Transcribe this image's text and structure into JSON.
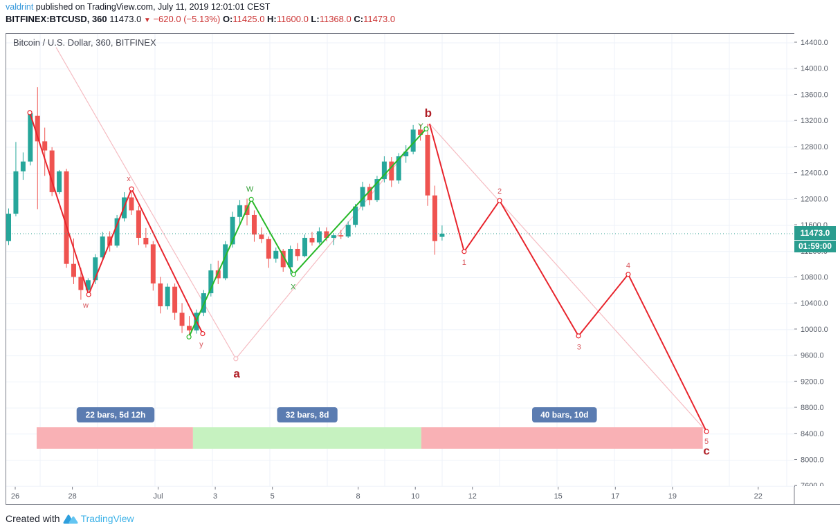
{
  "header": {
    "author": "valdrint",
    "published": " published on TradingView.com, July 11, 2019 12:01:01 CEST",
    "symbol": "BITFINEX:BTCUSD, 360",
    "last": "11473.0",
    "arrow": "▼",
    "change": "−620.0 (−5.13%)",
    "o_label": "O:",
    "o_val": "11425.0",
    "h_label": "H:",
    "h_val": "11600.0",
    "l_label": "L:",
    "l_val": "11368.0",
    "c_label": "C:",
    "c_val": "11473.0"
  },
  "chart": {
    "title": "Bitcoin / U.S. Dollar, 360, BITFINEX",
    "price_label": {
      "price": "11473.0",
      "countdown": "01:59:00"
    }
  },
  "footer": {
    "created_with": "Created with",
    "brand": "TradingView"
  },
  "colors": {
    "up": "#26a69a",
    "down": "#ef5350",
    "grid": "#eef2f9",
    "frame": "#787b86",
    "red_line": "#e8242c",
    "green_line": "#27b827",
    "pink_line": "#f5bcc2",
    "label_red_small": "#d8555b",
    "label_red_bold": "#b01e26",
    "label_green": "#2f9e33",
    "badge_bg": "#5b7cb1",
    "badge_text": "#ffffff",
    "band_pink": "#f9b1b5",
    "band_green": "#c6f2c0",
    "price_line": "#2a9d8f",
    "price_label_bg": "#2a9d8f",
    "axis_text": "#555b66",
    "header_red": "#cc3434",
    "author_blue": "#3598db",
    "brand_blue": "#3fb3e8"
  },
  "chart_data": {
    "type": "candlestick",
    "symbol": "BITFINEX:BTCUSD",
    "interval_minutes": 360,
    "title": "Bitcoin / U.S. Dollar, 360, BITFINEX",
    "current_price": 11473.0,
    "y_axis": {
      "min": 7600,
      "max": 14400,
      "tick_step": 400,
      "ticks": [
        7600,
        8000,
        8400,
        8800,
        9200,
        9600,
        10000,
        10400,
        10800,
        11200,
        11600,
        12000,
        12400,
        12800,
        13200,
        13600,
        14000,
        14400
      ]
    },
    "x_axis": {
      "note": "day offsets measured from June 26",
      "tick_labels": [
        {
          "label": "26",
          "d": 0
        },
        {
          "label": "28",
          "d": 2
        },
        {
          "label": "Jul",
          "d": 5
        },
        {
          "label": "3",
          "d": 7
        },
        {
          "label": "5",
          "d": 9
        },
        {
          "label": "8",
          "d": 12
        },
        {
          "label": "10",
          "d": 14
        },
        {
          "label": "12",
          "d": 16
        },
        {
          "label": "15",
          "d": 19
        },
        {
          "label": "17",
          "d": 21
        },
        {
          "label": "19",
          "d": 23
        },
        {
          "label": "22",
          "d": 26
        }
      ]
    },
    "first_bar_day": -0.25,
    "bar_step_days": 0.25,
    "candles": [
      [
        11360,
        11860,
        11300,
        11780
      ],
      [
        11780,
        12880,
        11740,
        12430
      ],
      [
        12430,
        12720,
        12300,
        12580
      ],
      [
        12580,
        13340,
        12520,
        13320
      ],
      [
        13280,
        13720,
        11850,
        12890
      ],
      [
        12890,
        13100,
        12360,
        12750
      ],
      [
        12750,
        12800,
        12050,
        12110
      ],
      [
        12110,
        12450,
        12080,
        12430
      ],
      [
        12430,
        12470,
        10950,
        11010
      ],
      [
        11010,
        11400,
        10700,
        10810
      ],
      [
        10810,
        10950,
        10460,
        10610
      ],
      [
        10610,
        10790,
        10540,
        10760
      ],
      [
        10760,
        11160,
        10700,
        11110
      ],
      [
        11110,
        11500,
        11060,
        11430
      ],
      [
        11430,
        11510,
        11200,
        11290
      ],
      [
        11290,
        11760,
        11260,
        11710
      ],
      [
        11710,
        12110,
        11660,
        12030
      ],
      [
        12030,
        12160,
        11760,
        11830
      ],
      [
        11830,
        11900,
        11300,
        11410
      ],
      [
        11410,
        11560,
        11260,
        11310
      ],
      [
        11310,
        11360,
        10600,
        10710
      ],
      [
        10710,
        10810,
        10250,
        10360
      ],
      [
        10360,
        10710,
        10310,
        10660
      ],
      [
        10660,
        10710,
        10150,
        10260
      ],
      [
        10260,
        10410,
        9950,
        10060
      ],
      [
        10060,
        10210,
        9880,
        9990
      ],
      [
        9990,
        10310,
        9940,
        10260
      ],
      [
        10260,
        10610,
        10210,
        10560
      ],
      [
        10560,
        11010,
        10510,
        10910
      ],
      [
        10910,
        11060,
        10700,
        10790
      ],
      [
        10790,
        11360,
        10760,
        11310
      ],
      [
        11310,
        11810,
        11260,
        11730
      ],
      [
        11730,
        11990,
        11610,
        11910
      ],
      [
        11910,
        12010,
        11600,
        11760
      ],
      [
        11760,
        11830,
        11350,
        11460
      ],
      [
        11460,
        11570,
        11330,
        11390
      ],
      [
        11390,
        11430,
        10950,
        11090
      ],
      [
        11090,
        11260,
        11030,
        11210
      ],
      [
        11210,
        11240,
        10890,
        10960
      ],
      [
        10960,
        11290,
        10850,
        11240
      ],
      [
        11240,
        11330,
        11060,
        11130
      ],
      [
        11130,
        11460,
        11110,
        11410
      ],
      [
        11410,
        11500,
        11290,
        11340
      ],
      [
        11340,
        11570,
        11310,
        11510
      ],
      [
        11510,
        11570,
        11360,
        11410
      ],
      [
        11410,
        11480,
        11300,
        11450
      ],
      [
        11450,
        11530,
        11390,
        11430
      ],
      [
        11430,
        11660,
        11410,
        11610
      ],
      [
        11610,
        11930,
        11570,
        11890
      ],
      [
        11890,
        12270,
        11830,
        12190
      ],
      [
        12190,
        12240,
        11910,
        11990
      ],
      [
        11990,
        12360,
        11960,
        12310
      ],
      [
        12310,
        12660,
        12260,
        12580
      ],
      [
        12580,
        12650,
        12190,
        12290
      ],
      [
        12290,
        12710,
        12240,
        12660
      ],
      [
        12660,
        12830,
        12560,
        12730
      ],
      [
        12730,
        13140,
        12690,
        13070
      ],
      [
        13070,
        13150,
        12900,
        12990
      ],
      [
        12990,
        13160,
        11900,
        12060
      ],
      [
        12060,
        12210,
        11150,
        11360
      ],
      [
        11425,
        11600,
        11368,
        11473
      ]
    ],
    "waves": [
      {
        "name": "red-wxy",
        "color_key": "red_line",
        "width": 2,
        "markers": true,
        "points": [
          {
            "d": 0.51,
            "p": 13330
          },
          {
            "d": 2.57,
            "p": 10540
          },
          {
            "d": 4.07,
            "p": 12160
          },
          {
            "d": 6.56,
            "p": 9940
          }
        ]
      },
      {
        "name": "green-wxy",
        "color_key": "green_line",
        "width": 2,
        "markers": true,
        "points": [
          {
            "d": 6.08,
            "p": 9890
          },
          {
            "d": 8.26,
            "p": 12000
          },
          {
            "d": 9.74,
            "p": 10850
          },
          {
            "d": 14.38,
            "p": 13080
          }
        ]
      },
      {
        "name": "red-impulse-c",
        "color_key": "red_line",
        "width": 2,
        "markers": "skip-first",
        "points": [
          {
            "d": 14.5,
            "p": 13160
          },
          {
            "d": 15.71,
            "p": 11200
          },
          {
            "d": 16.95,
            "p": 11980
          },
          {
            "d": 19.71,
            "p": 9905
          },
          {
            "d": 21.45,
            "p": 10850
          },
          {
            "d": 24.19,
            "p": 8440
          }
        ]
      },
      {
        "name": "pink-a-b",
        "color_key": "pink_line",
        "width": 1.2,
        "markers": "mid-only",
        "points": [
          {
            "d": 1.43,
            "p": 14330
          },
          {
            "d": 7.72,
            "p": 9556
          },
          {
            "d": 14.5,
            "p": 13160
          }
        ]
      },
      {
        "name": "pink-b-c",
        "color_key": "pink_line",
        "width": 1.2,
        "markers": false,
        "points": [
          {
            "d": 14.5,
            "p": 13160
          },
          {
            "d": 24.19,
            "p": 8440
          }
        ]
      }
    ],
    "wave_labels": [
      {
        "text": "w",
        "d": 2.47,
        "p": 10380,
        "size": 11,
        "bold": false,
        "color_key": "label_red_small"
      },
      {
        "text": "x",
        "d": 3.97,
        "p": 12320,
        "size": 11,
        "bold": false,
        "color_key": "label_red_small"
      },
      {
        "text": "y",
        "d": 6.51,
        "p": 9780,
        "size": 11,
        "bold": false,
        "color_key": "label_red_small"
      },
      {
        "text": "W",
        "d": 8.21,
        "p": 12160,
        "size": 11,
        "bold": false,
        "color_key": "label_green"
      },
      {
        "text": "X",
        "d": 9.73,
        "p": 10660,
        "size": 11,
        "bold": false,
        "color_key": "label_green"
      },
      {
        "text": "Y",
        "d": 14.19,
        "p": 13130,
        "size": 11,
        "bold": false,
        "color_key": "label_green"
      },
      {
        "text": "a",
        "d": 7.75,
        "p": 9330,
        "size": 17,
        "bold": true,
        "color_key": "label_red_bold"
      },
      {
        "text": "b",
        "d": 14.45,
        "p": 13330,
        "size": 17,
        "bold": true,
        "color_key": "label_red_bold"
      },
      {
        "text": "c",
        "d": 24.19,
        "p": 8150,
        "size": 17,
        "bold": true,
        "color_key": "label_red_bold"
      },
      {
        "text": "1",
        "d": 15.71,
        "p": 11040,
        "size": 11,
        "bold": false,
        "color_key": "label_red_small"
      },
      {
        "text": "2",
        "d": 16.95,
        "p": 12130,
        "size": 11,
        "bold": false,
        "color_key": "label_red_small"
      },
      {
        "text": "3",
        "d": 19.73,
        "p": 9740,
        "size": 11,
        "bold": false,
        "color_key": "label_red_small"
      },
      {
        "text": "4",
        "d": 21.45,
        "p": 10990,
        "size": 11,
        "bold": false,
        "color_key": "label_red_small"
      },
      {
        "text": "5",
        "d": 24.19,
        "p": 8290,
        "size": 11,
        "bold": false,
        "color_key": "label_red_small"
      }
    ],
    "bar_ranges": [
      {
        "label": "22 bars, 5d 12h",
        "d_start": 0.75,
        "d_end": 6.22,
        "band_color_key": "band_pink",
        "badge_center_d": 3.51
      },
      {
        "label": "32 bars, 8d",
        "d_start": 6.22,
        "d_end": 14.21,
        "band_color_key": "band_green",
        "badge_center_d": 10.22
      },
      {
        "label": "40 bars, 10d",
        "d_start": 14.21,
        "d_end": 24.06,
        "band_color_key": "band_pink",
        "badge_center_d": 19.22
      }
    ]
  }
}
